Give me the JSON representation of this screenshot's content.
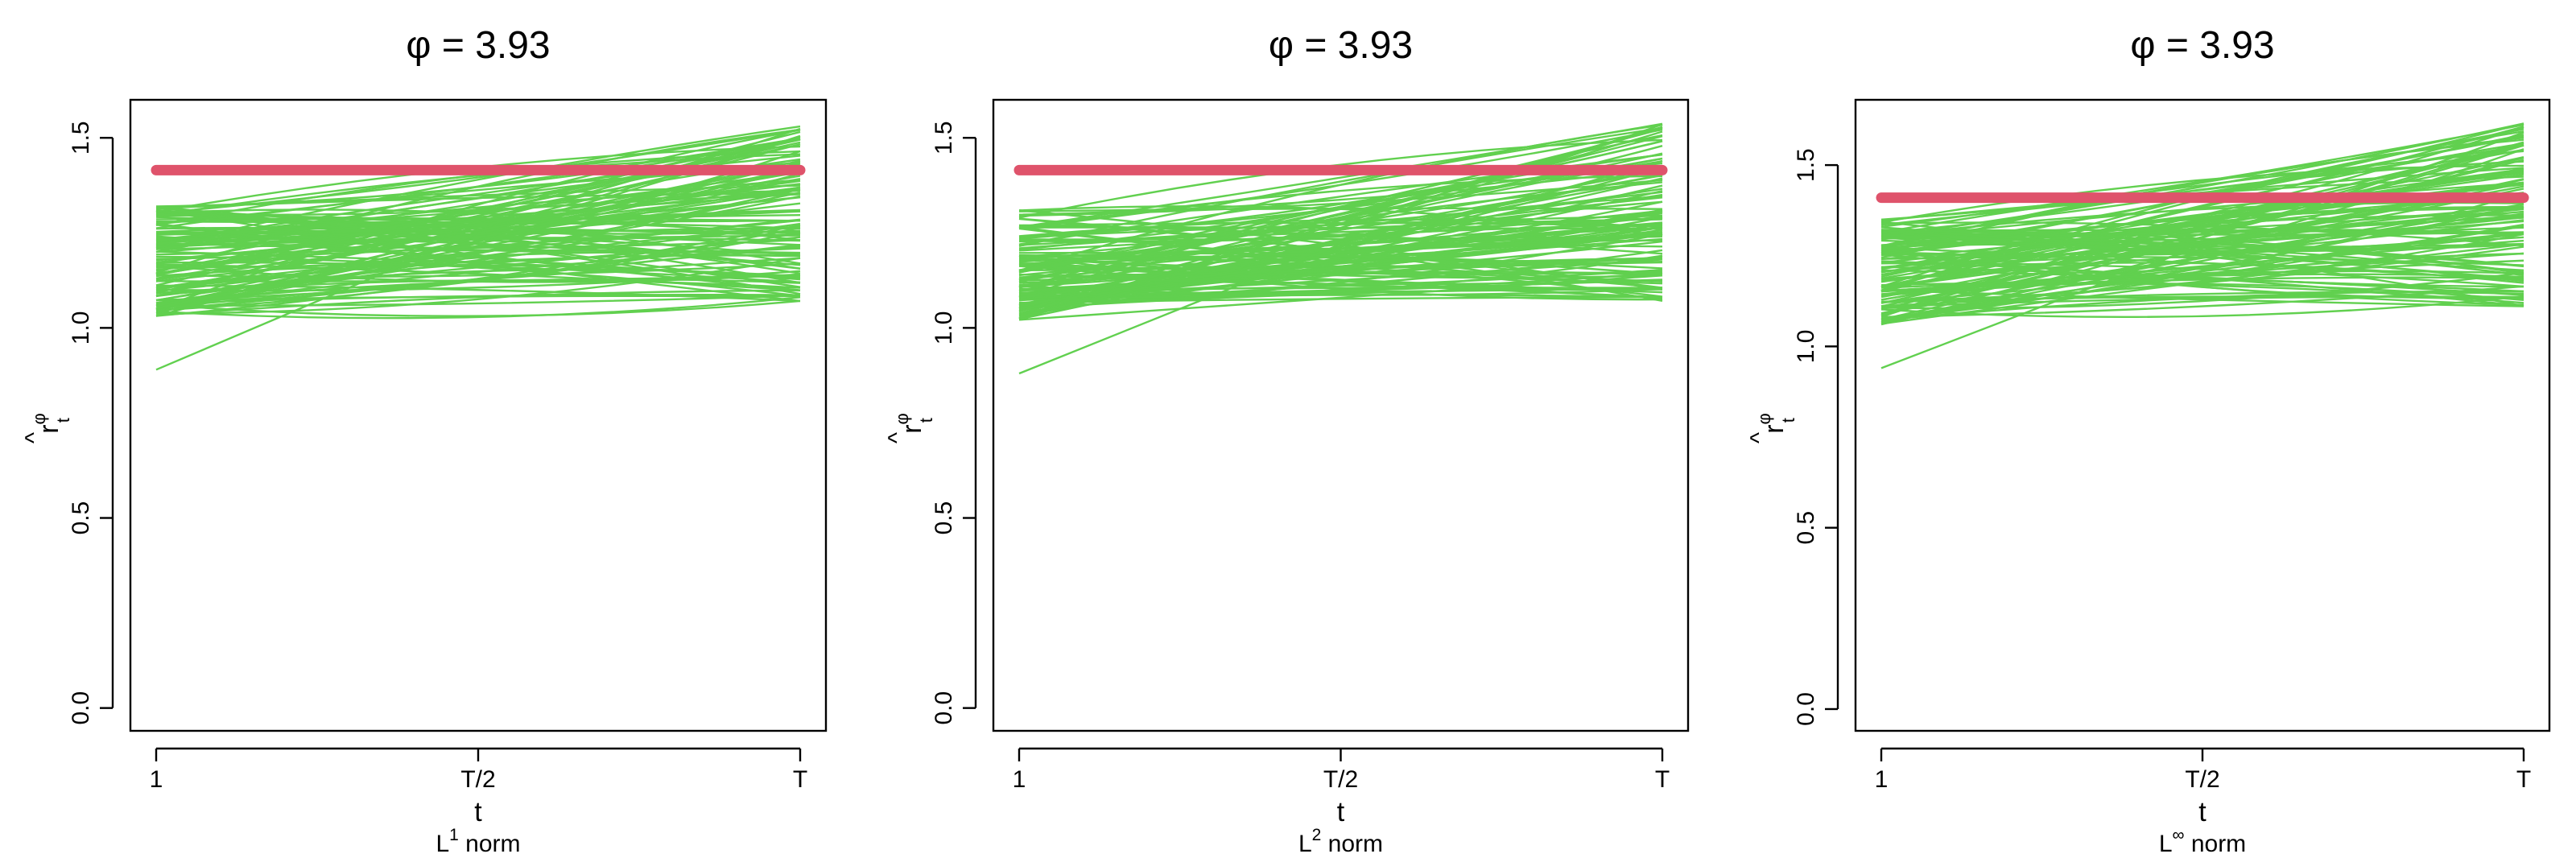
{
  "colors": {
    "background": "#ffffff",
    "axis": "#000000",
    "reference_line": "#DF536B",
    "simulated_lines": "#61D04F"
  },
  "chart_data": [
    {
      "type": "line",
      "title": "φ = 3.93",
      "xlabel": "t",
      "subtitle": {
        "base": "L",
        "sup": "1",
        "suffix": " norm"
      },
      "ylabel": {
        "base": "r",
        "sup": "φ",
        "sub": "t",
        "hat": "^"
      },
      "x_ticks": [
        {
          "pos": 0,
          "label": "1"
        },
        {
          "pos": 0.5,
          "label": "T/2"
        },
        {
          "pos": 1,
          "label": "T"
        }
      ],
      "y_ticks": [
        0.0,
        0.5,
        1.0,
        1.5
      ],
      "y_tick_labels": [
        "0.0",
        "0.5",
        "1.0",
        "1.5"
      ],
      "ylim": [
        -0.06,
        1.6
      ],
      "reference": {
        "value": 1.415,
        "color": "#DF536B"
      },
      "simulated": {
        "count": 120,
        "start_range": [
          1.03,
          1.32
        ],
        "end_range": [
          1.07,
          1.53
        ],
        "outlier": [
          0.89,
          1.25,
          1.4
        ],
        "color": "#61D04F"
      }
    },
    {
      "type": "line",
      "title": "φ = 3.93",
      "xlabel": "t",
      "subtitle": {
        "base": "L",
        "sup": "2",
        "suffix": " norm"
      },
      "ylabel": {
        "base": "r",
        "sup": "φ",
        "sub": "t",
        "hat": "^"
      },
      "x_ticks": [
        {
          "pos": 0,
          "label": "1"
        },
        {
          "pos": 0.5,
          "label": "T/2"
        },
        {
          "pos": 1,
          "label": "T"
        }
      ],
      "y_ticks": [
        0.0,
        0.5,
        1.0,
        1.5
      ],
      "y_tick_labels": [
        "0.0",
        "0.5",
        "1.0",
        "1.5"
      ],
      "ylim": [
        -0.06,
        1.6
      ],
      "reference": {
        "value": 1.415,
        "color": "#DF536B"
      },
      "simulated": {
        "count": 120,
        "start_range": [
          1.02,
          1.31
        ],
        "end_range": [
          1.07,
          1.54
        ],
        "outlier": [
          0.88,
          1.22,
          1.35
        ],
        "color": "#61D04F"
      }
    },
    {
      "type": "line",
      "title": "φ = 3.93",
      "xlabel": "t",
      "subtitle": {
        "base": "L",
        "sup": "∞",
        "suffix": " norm"
      },
      "ylabel": {
        "base": "r",
        "sup": "φ",
        "sub": "t",
        "hat": "^"
      },
      "x_ticks": [
        {
          "pos": 0,
          "label": "1"
        },
        {
          "pos": 0.5,
          "label": "T/2"
        },
        {
          "pos": 1,
          "label": "T"
        }
      ],
      "y_ticks": [
        0.0,
        0.5,
        1.0,
        1.5
      ],
      "y_tick_labels": [
        "0.0",
        "0.5",
        "1.0",
        "1.5"
      ],
      "ylim": [
        -0.06,
        1.68
      ],
      "reference": {
        "value": 1.41,
        "color": "#DF536B"
      },
      "simulated": {
        "count": 120,
        "start_range": [
          1.06,
          1.35
        ],
        "end_range": [
          1.11,
          1.62
        ],
        "outlier": [
          0.94,
          1.28,
          1.45
        ],
        "color": "#61D04F"
      }
    }
  ]
}
